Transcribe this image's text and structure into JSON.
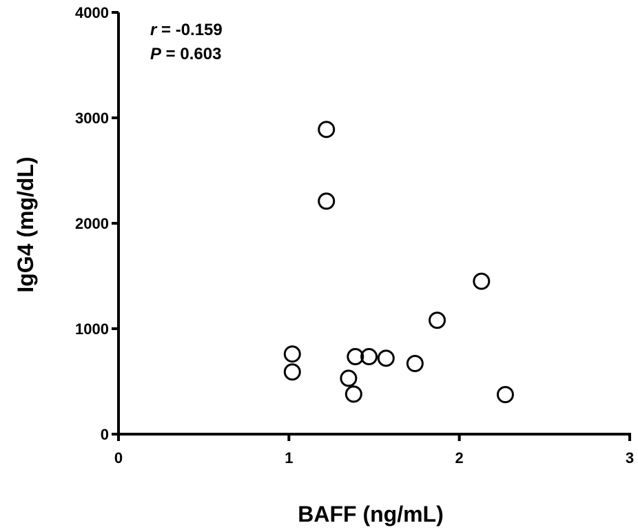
{
  "chart_data": {
    "type": "scatter",
    "title": "",
    "xlabel": "BAFF (ng/mL)",
    "ylabel": "IgG4 (mg/dL)",
    "xlim": [
      0,
      3
    ],
    "ylim": [
      0,
      4000
    ],
    "x_ticks": [
      0,
      1,
      2,
      3
    ],
    "y_ticks": [
      0,
      1000,
      2000,
      3000,
      4000
    ],
    "x_tick_labels": [
      "0",
      "1",
      "2",
      "3"
    ],
    "y_tick_labels": [
      "0",
      "1000",
      "2000",
      "3000",
      "4000"
    ],
    "grid": false,
    "marker": "open-circle",
    "points": [
      {
        "x": 1.02,
        "y": 760
      },
      {
        "x": 1.02,
        "y": 590
      },
      {
        "x": 1.22,
        "y": 2890
      },
      {
        "x": 1.22,
        "y": 2210
      },
      {
        "x": 1.35,
        "y": 530
      },
      {
        "x": 1.38,
        "y": 380
      },
      {
        "x": 1.39,
        "y": 735
      },
      {
        "x": 1.47,
        "y": 735
      },
      {
        "x": 1.57,
        "y": 720
      },
      {
        "x": 1.74,
        "y": 670
      },
      {
        "x": 1.87,
        "y": 1080
      },
      {
        "x": 2.13,
        "y": 1450
      },
      {
        "x": 2.27,
        "y": 375
      }
    ],
    "annotation": {
      "r_symbol": "r",
      "r_value": " = -0.159",
      "p_symbol": "P",
      "p_value": " = 0.603"
    }
  }
}
